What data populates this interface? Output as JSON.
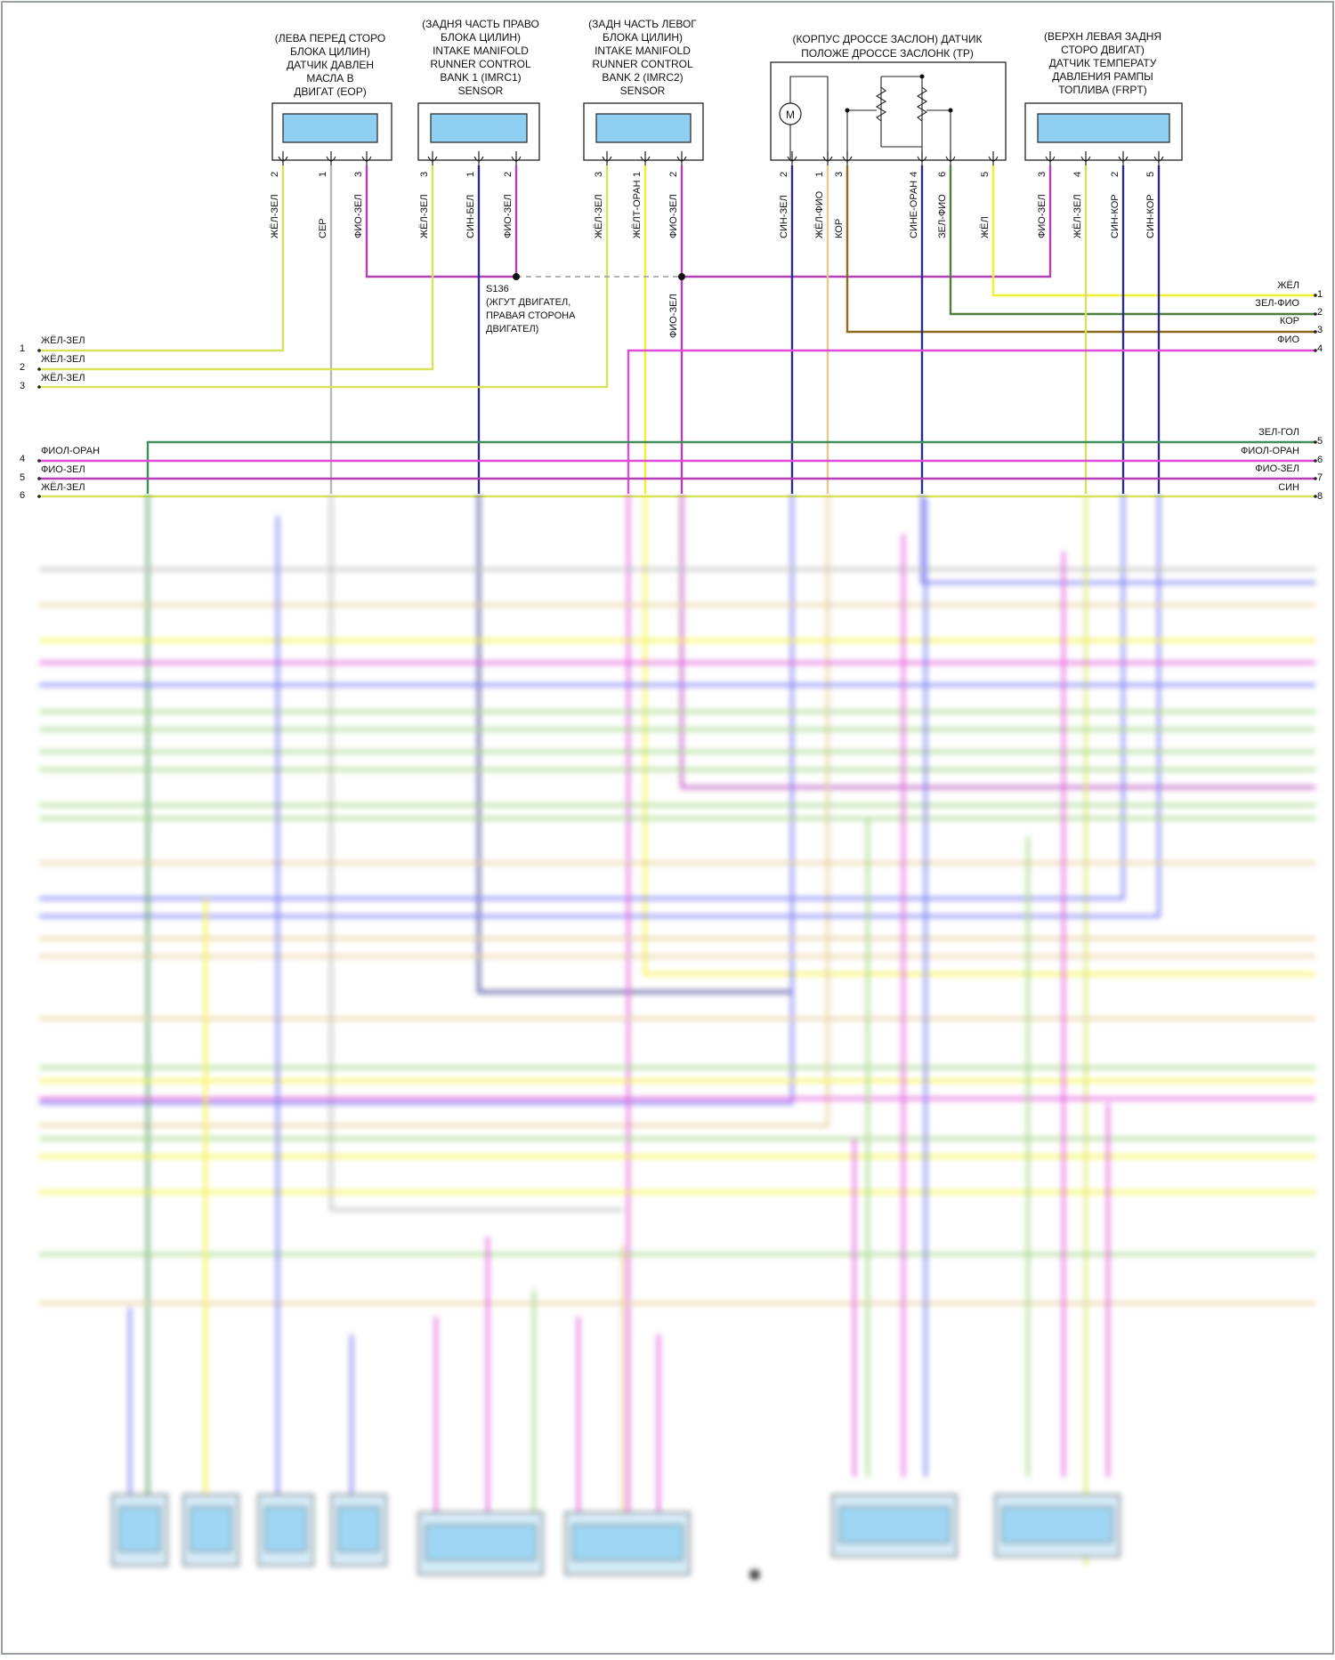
{
  "components": [
    {
      "id": "eop",
      "title": [
        "(ЛЕВА ПЕРЕД СТОРО",
        "БЛОКА ЦИЛИН)",
        "ДАТЧИК ДАВЛЕН",
        "МАСЛА В",
        "ДВИГАТ (EOP)"
      ],
      "pins": [
        {
          "num": "2",
          "wire": "ЖЁЛ-ЗЕЛ"
        },
        {
          "num": "1",
          "wire": "СЕР"
        },
        {
          "num": "3",
          "wire": "ФИО-ЗЕЛ"
        }
      ]
    },
    {
      "id": "imrc1",
      "title": [
        "(ЗАДНЯ ЧАСТЬ ПРАВО",
        "БЛОКА ЦИЛИН)",
        "INTAKE MANIFOLD",
        "RUNNER CONTROL",
        "BANK 1 (IMRC1)",
        "SENSOR"
      ],
      "pins": [
        {
          "num": "3",
          "wire": "ЖЁЛ-ЗЕЛ"
        },
        {
          "num": "1",
          "wire": "СИН-БЕЛ"
        },
        {
          "num": "2",
          "wire": "ФИО-ЗЕЛ"
        }
      ]
    },
    {
      "id": "imrc2",
      "title": [
        "(ЗАДН ЧАСТЬ ЛЕВОГ",
        "БЛОКА ЦИЛИН)",
        "INTAKE MANIFOLD",
        "RUNNER CONTROL",
        "BANK 2 (IMRC2)",
        "SENSOR"
      ],
      "pins": [
        {
          "num": "3",
          "wire": "ЖЁЛ-ЗЕЛ"
        },
        {
          "num": "1",
          "wire": "ЖЁЛТ-ОРАН"
        },
        {
          "num": "2",
          "wire": "ФИО-ЗЕЛ"
        }
      ]
    },
    {
      "id": "tp",
      "title": [
        "(КОРПУС ДРОССЕ ЗАСЛОН) ДАТЧИК",
        "ПОЛОЖЕ ДРОССЕ ЗАСЛОНК (TP)"
      ],
      "pins": [
        {
          "num": "2",
          "wire": "СИН-ЗЕЛ"
        },
        {
          "num": "1",
          "wire": "ЖЁЛ-ФИО"
        },
        {
          "num": "3",
          "wire": "КОР"
        },
        {
          "num": "4",
          "wire": "СИНЕ-ОРАН"
        },
        {
          "num": "6",
          "wire": "ЗЕЛ-ФИО"
        },
        {
          "num": "5",
          "wire": "ЖЁЛ"
        }
      ],
      "motor_label": "M"
    },
    {
      "id": "frpt",
      "title": [
        "(ВЕРХН ЛЕВАЯ ЗАДНЯ",
        "СТОРО ДВИГАТ)",
        "ДАТЧИК ТЕМПЕРАТУ",
        "ДАВЛЕНИЯ РАМПЫ",
        "ТОПЛИВА (FRPT)"
      ],
      "pins": [
        {
          "num": "3",
          "wire": "ФИО-ЗЕЛ"
        },
        {
          "num": "4",
          "wire": "ЖЁЛ-ЗЕЛ"
        },
        {
          "num": "2",
          "wire": "СИН-КОР"
        },
        {
          "num": "5",
          "wire": "СИН-КОР"
        }
      ]
    }
  ],
  "splice": {
    "id": "S136",
    "label": [
      "S136",
      "(ЖГУТ ДВИГАТЕЛ,",
      "ПРАВАЯ СТОРОНА",
      "ДВИГАТЕЛ)"
    ],
    "branch_wire": "ФИО-ЗЕЛ"
  },
  "left_terminals": [
    {
      "num": "1",
      "label": "ЖЁЛ-ЗЕЛ"
    },
    {
      "num": "2",
      "label": "ЖЁЛ-ЗЕЛ"
    },
    {
      "num": "3",
      "label": "ЖЁЛ-ЗЕЛ"
    },
    {
      "num": "4",
      "label": "ФИОЛ-ОРАН"
    },
    {
      "num": "5",
      "label": "ФИО-ЗЕЛ"
    },
    {
      "num": "6",
      "label": "ЖЁЛ-ЗЕЛ"
    }
  ],
  "right_terminals": [
    {
      "num": "1",
      "label": "ЖЁЛ"
    },
    {
      "num": "2",
      "label": "ЗЕЛ-ФИО"
    },
    {
      "num": "3",
      "label": "КОР"
    },
    {
      "num": "4",
      "label": "ФИО"
    },
    {
      "num": "5",
      "label": "ЗЕЛ-ГОЛ"
    },
    {
      "num": "6",
      "label": "ФИОЛ-ОРАН"
    },
    {
      "num": "7",
      "label": "ФИО-ЗЕЛ"
    },
    {
      "num": "8",
      "label": "СИН"
    }
  ],
  "colors": {
    "yellow_green": "#d6e25a",
    "yellow": "#f2f02a",
    "gray": "#b7b7b7",
    "violet": "#b23fb6",
    "blue_dark": "#2c2d86",
    "green": "#3f8f5a",
    "brown": "#8a6a1e",
    "green_violet": "#4f7d3c",
    "pink": "#e04ad8",
    "blue": "#6b6bf0",
    "light_green": "#9ad17a",
    "tan": "#e3c98f"
  }
}
